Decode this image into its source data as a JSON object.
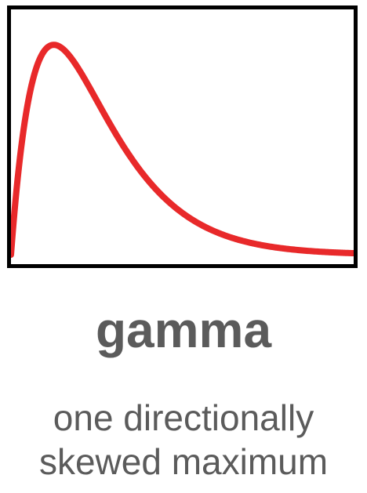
{
  "title": "gamma",
  "description_lines": [
    "one directionally",
    "skewed maximum"
  ],
  "colors": {
    "curve": "#e8292a",
    "frame": "#000000",
    "text": "#5b5b5b"
  },
  "chart_data": {
    "type": "line",
    "distribution": "gamma",
    "shape_k": 2,
    "scale_theta": 1,
    "xlim": [
      0,
      8
    ],
    "ylim": [
      0,
      0.386
    ],
    "axes_visible": false,
    "grid": false,
    "legend": "none",
    "title": "",
    "xlabel": "",
    "ylabel": ""
  }
}
